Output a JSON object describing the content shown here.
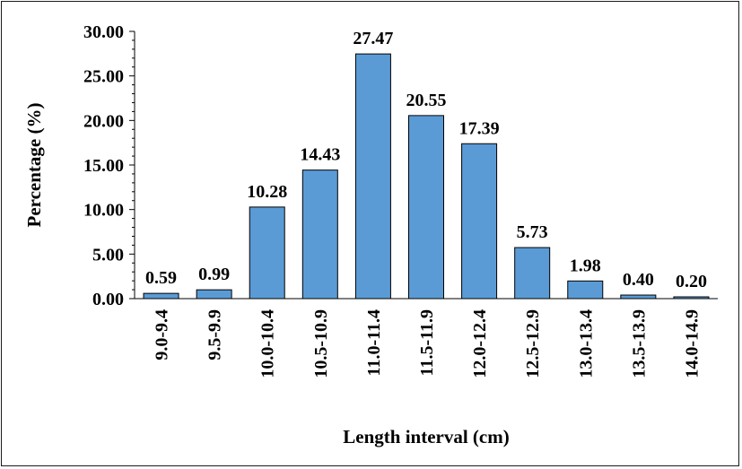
{
  "chart_data": {
    "type": "bar",
    "xlabel": "Length interval (cm)",
    "ylabel": "Percentage (%)",
    "categories": [
      "9.0-9.4",
      "9.5-9.9",
      "10.0-10.4",
      "10.5-10.9",
      "11.0-11.4",
      "11.5-11.9",
      "12.0-12.4",
      "12.5-12.9",
      "13.0-13.4",
      "13.5-13.9",
      "14.0-14.9"
    ],
    "values": [
      0.59,
      0.99,
      10.28,
      14.43,
      27.47,
      20.55,
      17.39,
      5.73,
      1.98,
      0.4,
      0.2
    ],
    "value_labels": [
      "0.59",
      "0.99",
      "10.28",
      "14.43",
      "27.47",
      "20.55",
      "17.39",
      "5.73",
      "1.98",
      "0.40",
      "0.20"
    ],
    "ylim": [
      0,
      30
    ],
    "yticks": [
      "0.00",
      "5.00",
      "10.00",
      "15.00",
      "20.00",
      "25.00",
      "30.00"
    ],
    "grid": false,
    "bar_color": "#5b9bd5"
  }
}
